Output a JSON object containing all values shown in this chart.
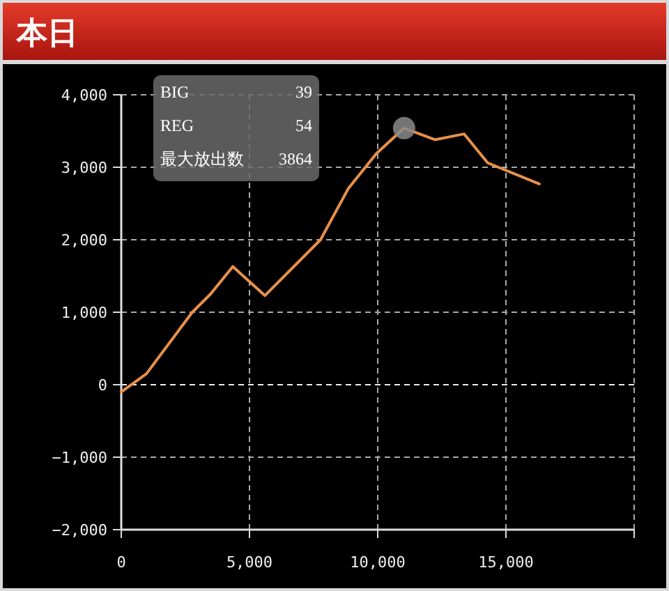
{
  "chart_data": {
    "type": "line",
    "title": "本日",
    "x": [
      0,
      980,
      2770,
      3480,
      4350,
      5600,
      7770,
      8860,
      9950,
      11030,
      12230,
      13370,
      14290,
      16300
    ],
    "series": [
      {
        "color": "#e8904a",
        "values": [
          -100,
          150,
          1000,
          1250,
          1630,
          1230,
          2000,
          2710,
          3190,
          3540,
          3380,
          3460,
          3060,
          2770
        ]
      },
      {
        "type": "scatter",
        "marker": "circle",
        "color": "#8a8a8a",
        "x": [
          11030
        ],
        "values": [
          3540
        ]
      }
    ],
    "xlim": [
      0,
      20000
    ],
    "xticks": [
      0,
      {
        "value": 5000,
        "label": "5,000"
      },
      {
        "value": 10000,
        "label": "10,000"
      },
      {
        "value": 15000,
        "label": "15,000"
      },
      {
        "value": 20000,
        "label": null
      }
    ],
    "ylim": [
      -2000,
      4000
    ],
    "yticks": [
      {
        "value": -2000,
        "label": "−2,000"
      },
      {
        "value": -1000,
        "label": "−1,000"
      },
      0,
      {
        "value": 1000,
        "label": "1,000"
      },
      {
        "value": 2000,
        "label": "2,000"
      },
      {
        "value": 3000,
        "label": "3,000"
      },
      {
        "value": 4000,
        "label": "4,000"
      }
    ],
    "grid": true,
    "ref_lines": [
      {
        "axis": "y",
        "value": 0,
        "color": "#eeeeee",
        "line_style": "dashed"
      }
    ],
    "annotations": [
      "BIG",
      "39",
      "REG",
      "54",
      "最大放出数",
      "3864"
    ]
  }
}
